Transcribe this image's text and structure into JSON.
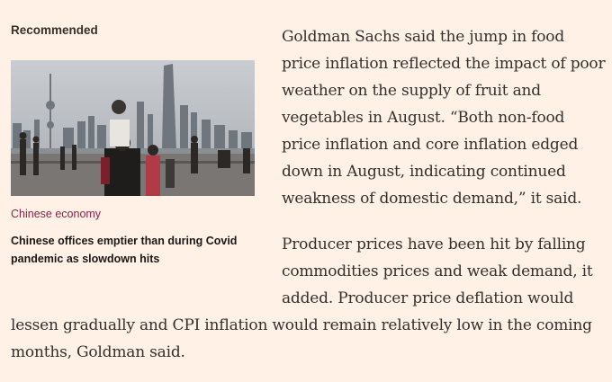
{
  "recommended": {
    "heading": "Recommended",
    "topic": "Chinese economy",
    "headline_lines": [
      "Chinese offices emptier than during Covid",
      "pandemic as slowdown hits"
    ]
  },
  "article": {
    "p1_lines": [
      "Goldman Sachs said the jump in food",
      "price inflation reflected the impact of poor",
      "weather on the supply of fruit and",
      "vegetables in August. “Both non-food",
      "price inflation and core inflation edged",
      "down in August, indicating continued",
      "weakness of domestic demand,” it said."
    ],
    "p2_lines": [
      "Producer prices have been hit by falling",
      "commodities prices and weak demand, it",
      "added. Producer price deflation would"
    ],
    "p2_full_lines": [
      "lessen gradually and CPI inflation would remain relatively low in the coming",
      "months, Goldman said."
    ]
  },
  "colors": {
    "background": "#fff1e5",
    "topic_link": "#8f2247",
    "text": "#33302e"
  }
}
